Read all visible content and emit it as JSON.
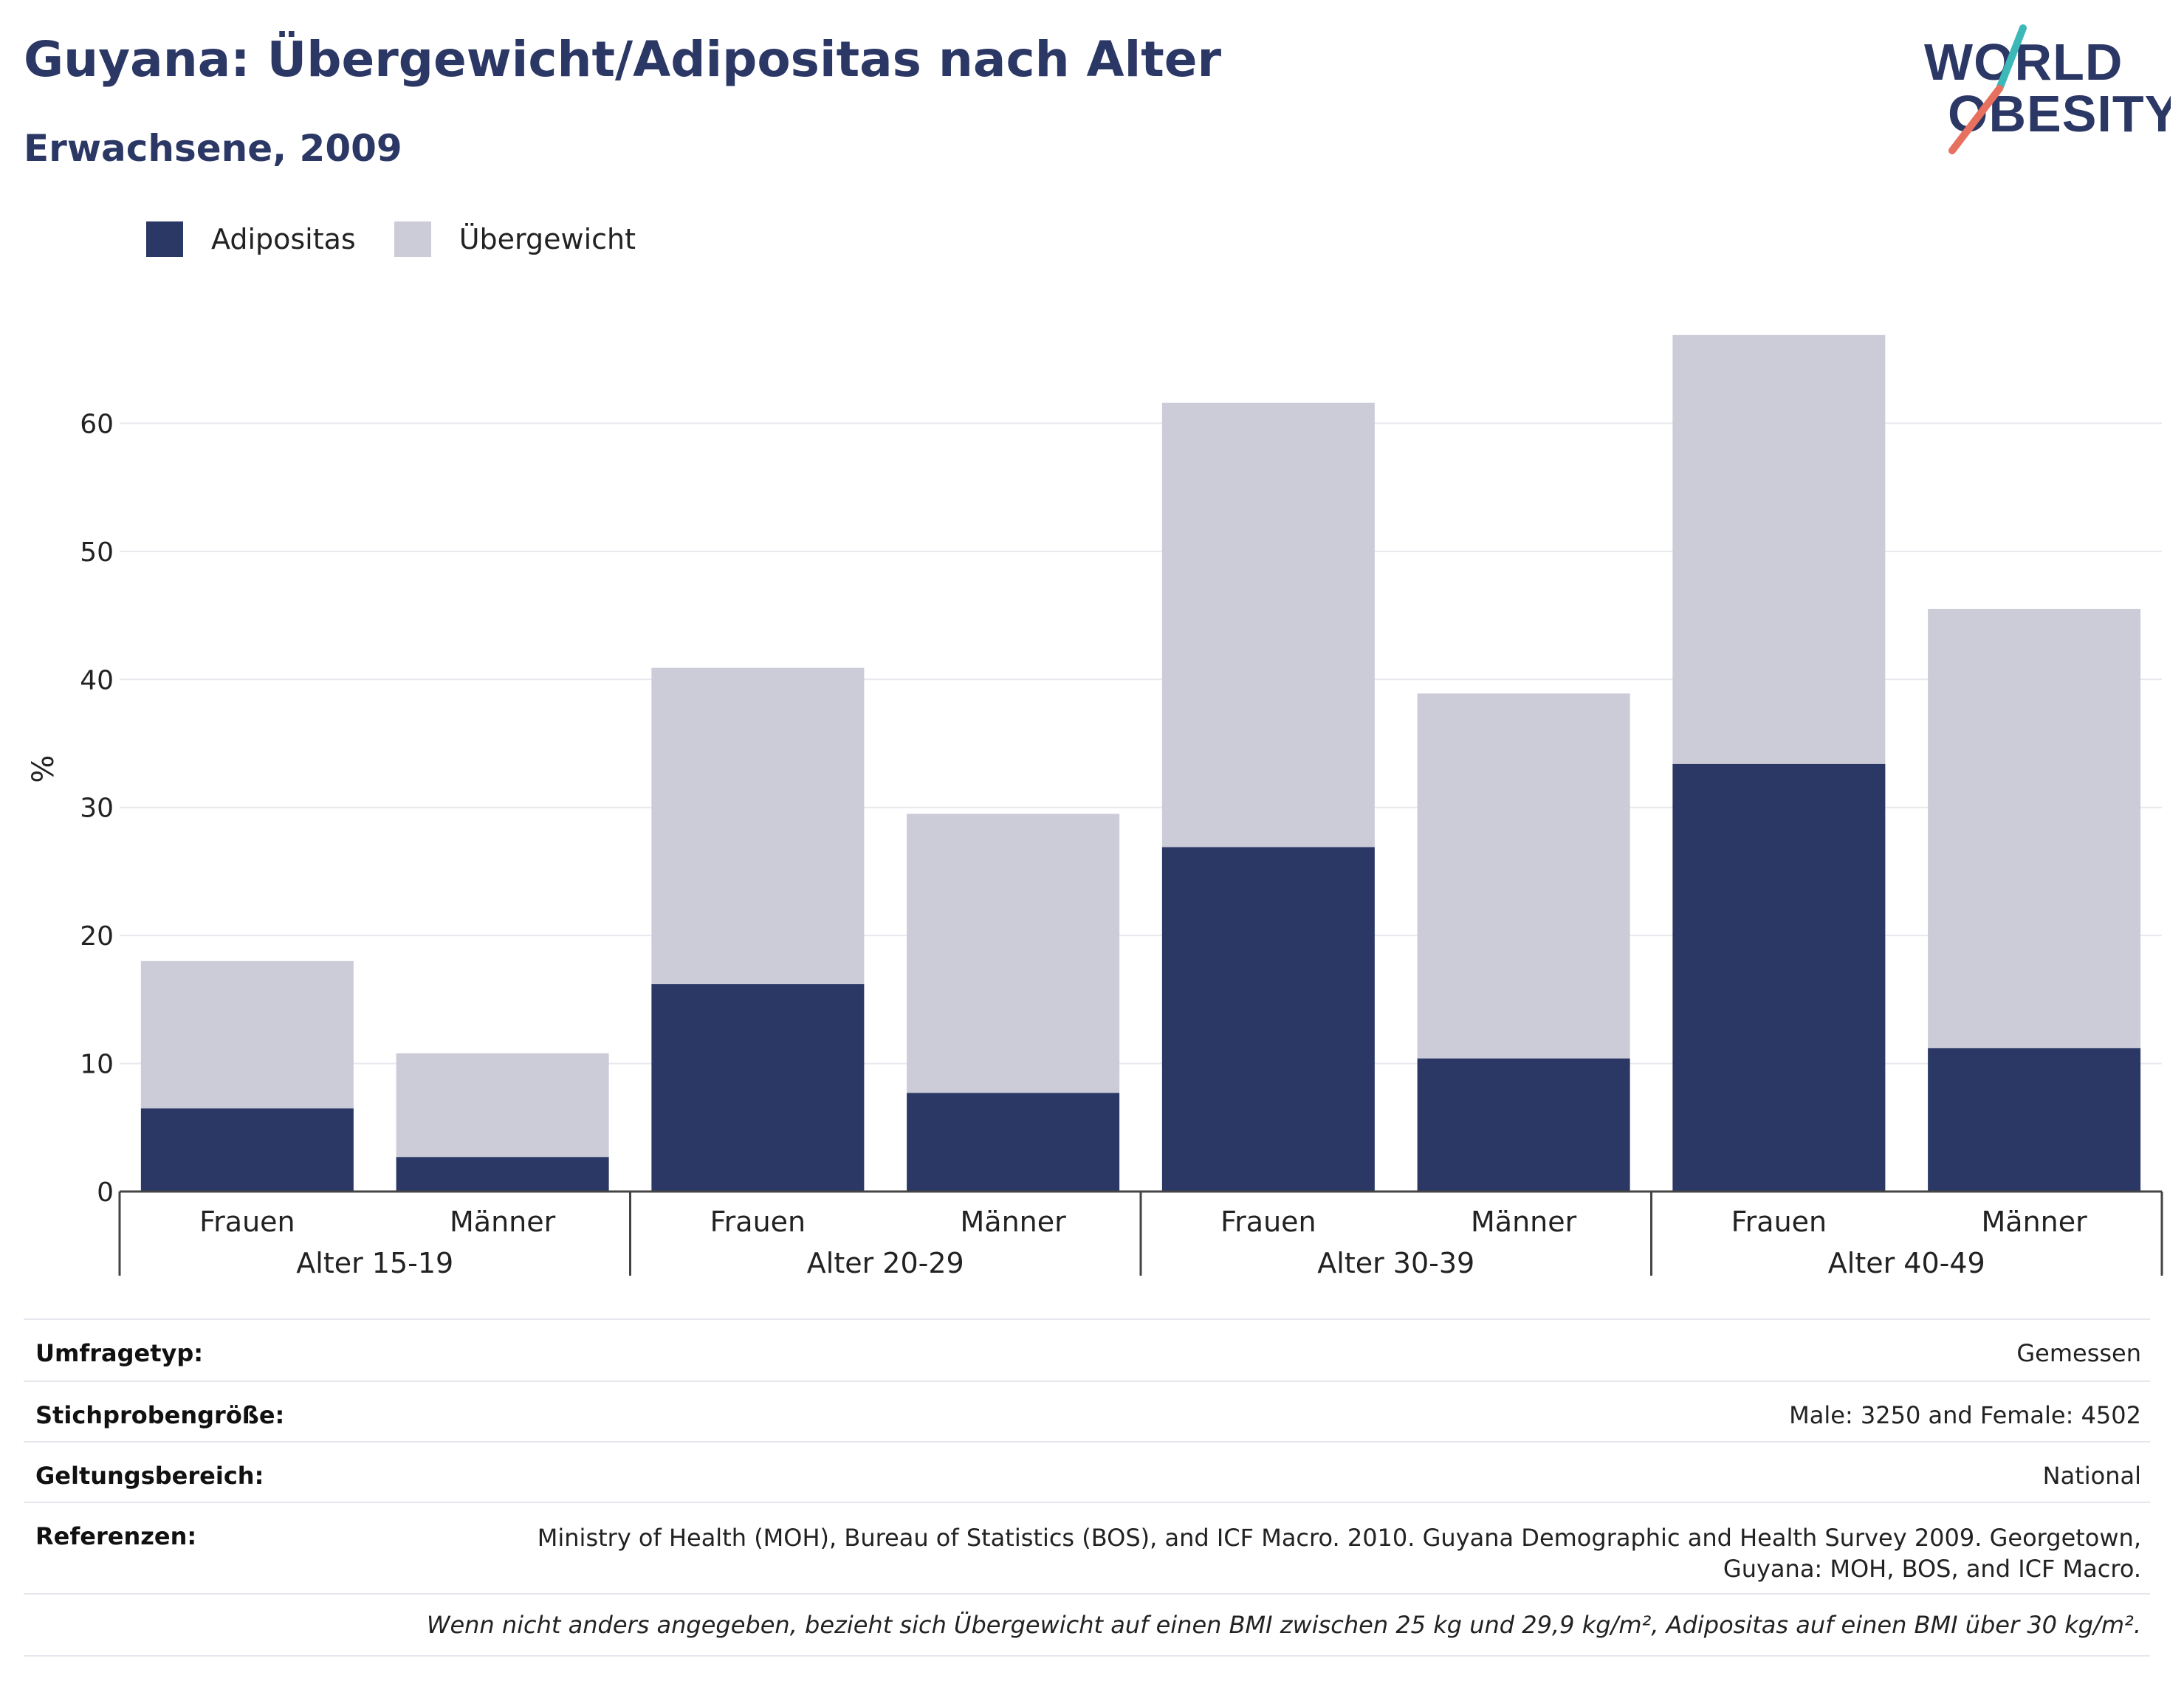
{
  "header": {
    "title": "Guyana: Übergewicht/Adipositas nach Alter",
    "subtitle": "Erwachsene, 2009"
  },
  "logo": {
    "line1": "WORLD",
    "line2": "OBESITY",
    "accent_teal": "#3db8b8",
    "accent_coral": "#e8705f"
  },
  "legend": [
    {
      "label": "Adipositas",
      "color": "#2b3764"
    },
    {
      "label": "Übergewicht",
      "color": "#cbccd8"
    }
  ],
  "chart_data": {
    "type": "bar",
    "stacked": true,
    "ylabel": "%",
    "ylim": [
      0,
      70
    ],
    "yticks": [
      0,
      10,
      20,
      30,
      40,
      50,
      60
    ],
    "grid": true,
    "legend_position": "top-left",
    "groups": [
      "Alter 15-19",
      "Alter 20-29",
      "Alter 30-39",
      "Alter 40-49"
    ],
    "categories": [
      "Frauen",
      "Männer",
      "Frauen",
      "Männer",
      "Frauen",
      "Männer",
      "Frauen",
      "Männer"
    ],
    "series": [
      {
        "name": "Adipositas",
        "color": "#2b3764",
        "values": [
          6.5,
          2.7,
          16.2,
          7.7,
          26.9,
          10.4,
          33.4,
          11.2
        ]
      },
      {
        "name": "Übergewicht",
        "color": "#cbccd8",
        "values": [
          11.5,
          8.1,
          24.7,
          21.8,
          34.7,
          28.5,
          33.5,
          34.3
        ]
      }
    ]
  },
  "info": {
    "rows": [
      {
        "key": "Umfragetyp:",
        "value": "Gemessen"
      },
      {
        "key": "Stichprobengröße:",
        "value": "Male: 3250 and Female: 4502"
      },
      {
        "key": "Geltungsbereich:",
        "value": "National"
      },
      {
        "key": "Referenzen:",
        "value": "Ministry of Health (MOH), Bureau of Statistics (BOS), and ICF Macro. 2010. Guyana Demographic and Health Survey 2009. Georgetown, Guyana: MOH, BOS, and ICF Macro."
      }
    ],
    "note": "Wenn nicht anders angegeben, bezieht sich Übergewicht auf einen BMI zwischen 25 kg und 29,9 kg/m², Adipositas auf einen BMI über 30 kg/m²."
  }
}
